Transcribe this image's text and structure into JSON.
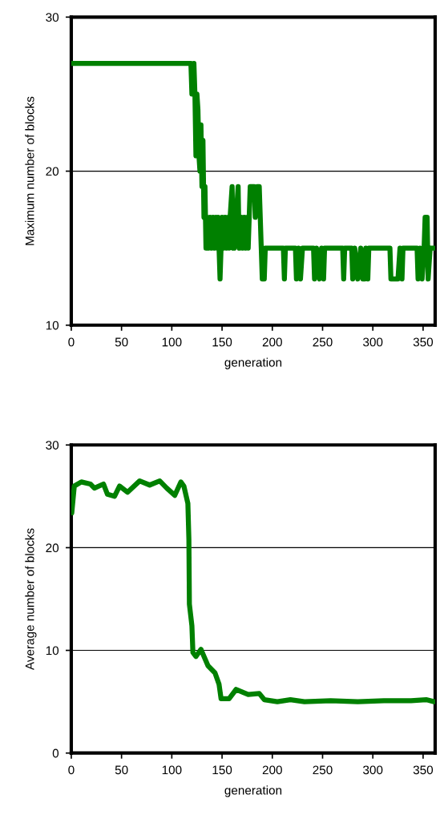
{
  "chart_data": [
    {
      "type": "line",
      "xlabel": "generation",
      "ylabel": "Maximum number of blocks",
      "xlim": [
        0,
        362
      ],
      "xticks": [
        0,
        50,
        100,
        150,
        200,
        250,
        300,
        350
      ],
      "ylim": [
        10,
        30
      ],
      "yticks": [
        10,
        20,
        30
      ],
      "grid": "y",
      "marker": "none",
      "line_style": "solid",
      "series": [
        {
          "color": "#008000",
          "x": [
            0,
            119,
            120,
            122,
            123,
            124,
            125,
            126,
            127,
            128,
            129,
            130,
            131,
            132,
            133,
            134,
            135,
            136,
            138,
            139,
            141,
            142,
            144,
            145,
            146,
            148,
            149,
            150,
            151,
            153,
            154,
            156,
            157,
            158,
            160,
            161,
            162,
            164,
            166,
            167,
            169,
            170,
            172,
            173,
            175,
            176,
            178,
            182,
            183,
            185,
            187,
            189,
            190,
            191,
            192,
            193,
            211,
            212,
            213,
            223,
            224,
            226,
            228,
            230,
            241,
            242,
            244,
            247,
            249,
            251,
            252,
            270,
            271,
            272,
            279,
            280,
            282,
            285,
            288,
            290,
            292,
            293,
            295,
            296,
            317,
            318,
            325,
            327,
            329,
            330,
            344,
            345,
            347,
            349,
            351,
            352,
            354,
            355,
            357,
            361
          ],
          "values": [
            27,
            27,
            25,
            27,
            25,
            21,
            25,
            24,
            21,
            20,
            23,
            19,
            22,
            17,
            19,
            15,
            17,
            15,
            17,
            15,
            17,
            15,
            17,
            15,
            17,
            13,
            15,
            17,
            15,
            17,
            15,
            17,
            15,
            17,
            19,
            15,
            15,
            17,
            19,
            15,
            17,
            15,
            17,
            15,
            17,
            15,
            19,
            19,
            17,
            19,
            19,
            15,
            13,
            15,
            13,
            15,
            15,
            13,
            15,
            15,
            13,
            15,
            13,
            15,
            15,
            13,
            15,
            13,
            15,
            13,
            15,
            15,
            13,
            15,
            15,
            13,
            15,
            13,
            15,
            13,
            13,
            15,
            13,
            15,
            15,
            13,
            13,
            15,
            13,
            15,
            15,
            13,
            15,
            13,
            15,
            17,
            17,
            13,
            15,
            15
          ]
        }
      ]
    },
    {
      "type": "line",
      "xlabel": "generation",
      "ylabel": "Average number of blocks",
      "xlim": [
        0,
        362
      ],
      "xticks": [
        0,
        50,
        100,
        150,
        200,
        250,
        300,
        350
      ],
      "ylim": [
        0,
        30
      ],
      "yticks": [
        0,
        10,
        20,
        30
      ],
      "grid": "y",
      "marker": "none",
      "line_style": "solid",
      "series": [
        {
          "color": "#008000",
          "x": [
            0.5,
            3,
            10,
            19,
            23,
            32,
            36,
            43,
            48,
            56,
            68,
            78,
            88,
            95,
            103,
            109,
            112,
            116,
            117,
            117.5,
            120,
            121,
            124,
            129,
            136,
            143,
            147,
            149,
            157,
            164,
            176,
            187,
            192,
            205,
            218,
            232,
            258,
            285,
            311,
            338,
            353,
            361
          ],
          "values": [
            23.4,
            26,
            26.4,
            26.2,
            25.8,
            26.2,
            25.2,
            25,
            26,
            25.4,
            26.5,
            26.1,
            26.5,
            25.8,
            25.1,
            26.4,
            26,
            24.3,
            20.8,
            14.5,
            12.4,
            9.8,
            9.4,
            10.1,
            8.5,
            7.8,
            6.7,
            5.3,
            5.3,
            6.2,
            5.7,
            5.8,
            5.2,
            5,
            5.2,
            5,
            5.1,
            5,
            5.1,
            5.1,
            5.2,
            5
          ]
        }
      ]
    }
  ]
}
